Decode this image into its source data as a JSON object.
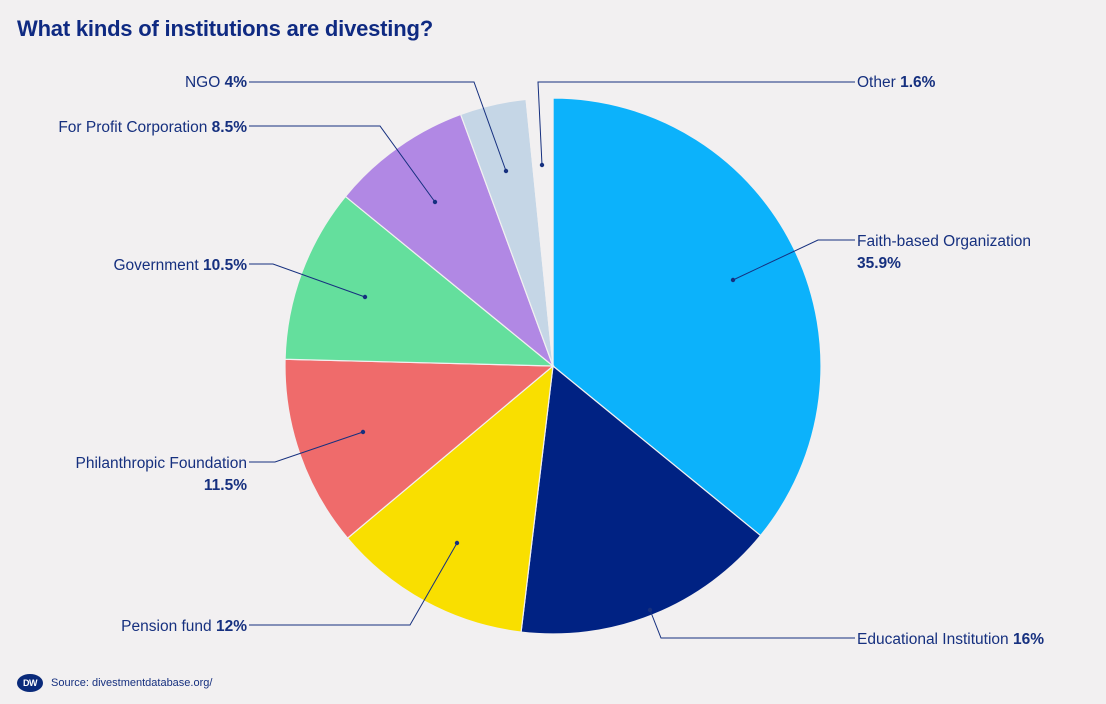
{
  "title": "What kinds of institutions are divesting?",
  "source": "Source: divestmentdatabase.org/",
  "logo_text": "DW",
  "chart_data": {
    "type": "pie",
    "title": "What kinds of institutions are divesting?",
    "unit": "%",
    "slices": [
      {
        "name": "Faith-based Organization",
        "pct_label": "35.9%",
        "value": 35.9,
        "color": "#0cb2fb"
      },
      {
        "name": "Educational Institution",
        "pct_label": "16%",
        "value": 16,
        "color": "#002283"
      },
      {
        "name": "Pension fund",
        "pct_label": "12%",
        "value": 12,
        "color": "#f9df00"
      },
      {
        "name": "Philanthropic Foundation",
        "pct_label": "11.5%",
        "value": 11.5,
        "color": "#ef6b6b"
      },
      {
        "name": "Government",
        "pct_label": "10.5%",
        "value": 10.5,
        "color": "#64df9d"
      },
      {
        "name": "For Profit Corporation",
        "pct_label": "8.5%",
        "value": 8.5,
        "color": "#b188e4"
      },
      {
        "name": "NGO",
        "pct_label": "4%",
        "value": 4,
        "color": "#c5d6e6"
      },
      {
        "name": "Other",
        "pct_label": "1.6%",
        "value": 1.6,
        "color": "#f2f0f1"
      }
    ]
  }
}
